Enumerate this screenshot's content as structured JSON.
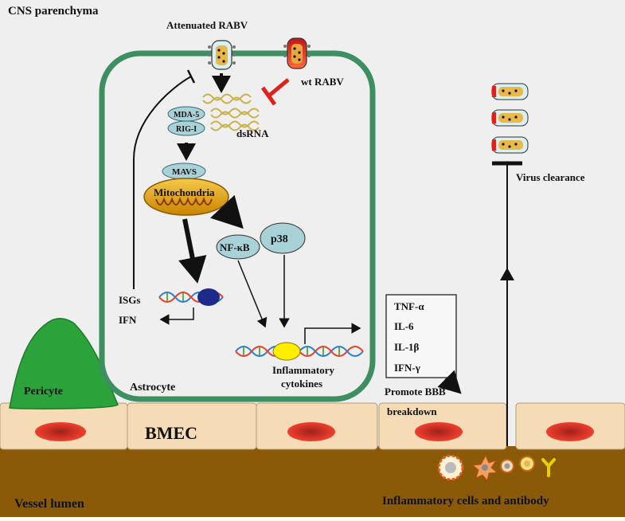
{
  "labels": {
    "cns_parenchyma": "CNS parenchyma",
    "attenuated_rabv": "Attenuated RABV",
    "wt_rabv": "wt RABV",
    "mda5": "MDA-5",
    "rigi": "RIG-I",
    "dsrna": "dsRNA",
    "mavs": "MAVS",
    "mitochondria": "Mitochondria",
    "nfkb": "NF-κB",
    "p38": "p38",
    "isgs": "ISGs",
    "ifn": "IFN",
    "inflammatory_cytokines_line1": "Inflammatory",
    "inflammatory_cytokines_line2": "cytokines",
    "astrocyte": "Astrocyte",
    "pericyte": "Pericyte",
    "bmec": "BMEC",
    "vessel_lumen": "Vessel lumen",
    "virus_clearance": "Virus clearance",
    "promote_bbb_line1": "Promote BBB",
    "promote_bbb_line2": "breakdown",
    "inflammatory_cells": "Inflammatory cells and antibody"
  },
  "cytokines": [
    "TNF-α",
    "IL-6",
    "IL-1β",
    "IFN-γ"
  ],
  "colors": {
    "background": "#efefef",
    "astrocyte_border": "#3d8f62",
    "vessel_lumen": "#8a5a08",
    "endothelium": "#f5dcb6",
    "bmec_nucleus": "#e03a2a",
    "pericyte": "#2ba33a",
    "inhibit_red": "#e0201a",
    "receptor_fill": "#a9d2d8",
    "mitochondria": "#e6a600",
    "dna_bead": "#ffee00",
    "dna_bead_navy": "#1e2a8a"
  }
}
